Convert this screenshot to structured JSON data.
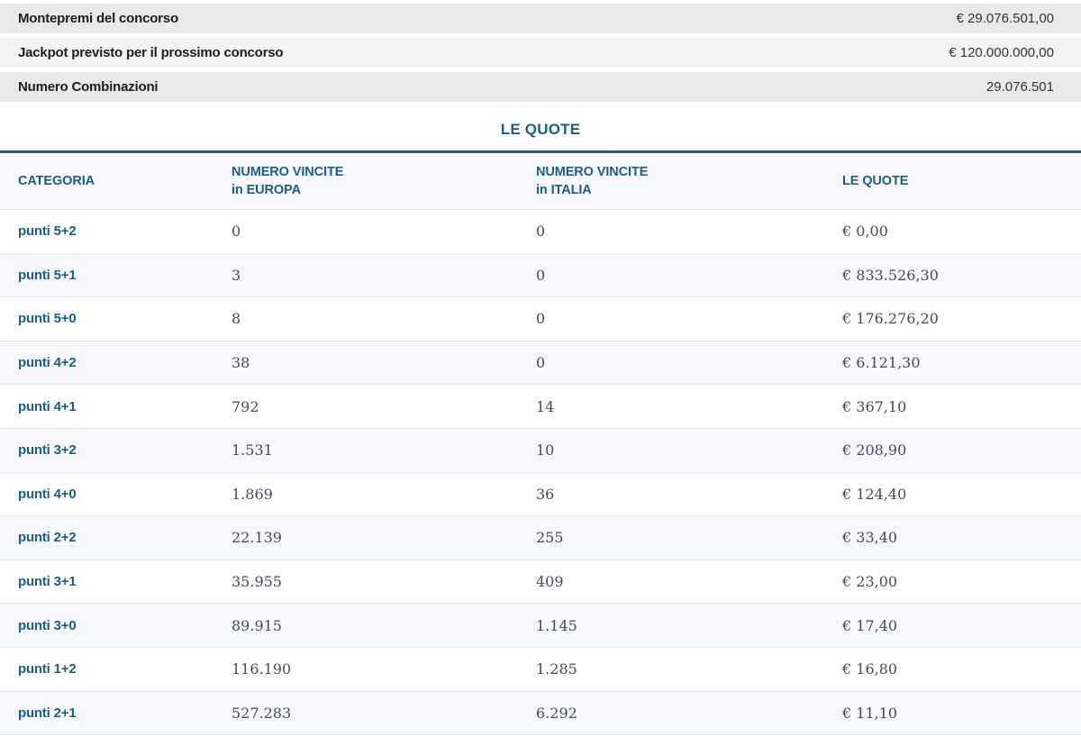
{
  "summary": {
    "rows": [
      {
        "label": "Montepremi del concorso",
        "value": "€ 29.076.501,00"
      },
      {
        "label": "Jackpot previsto per il prossimo concorso",
        "value": "€ 120.000.000,00"
      },
      {
        "label": "Numero Combinazioni",
        "value": "29.076.501"
      }
    ]
  },
  "section_title": "LE QUOTE",
  "table": {
    "headers": [
      {
        "line1": "CATEGORIA"
      },
      {
        "line1": "NUMERO VINCITE",
        "line2": "in EUROPA"
      },
      {
        "line1": "NUMERO VINCITE",
        "line2": "in ITALIA"
      },
      {
        "line1": "LE QUOTE"
      }
    ],
    "rows": [
      {
        "category": "punti 5+2",
        "europe": "0",
        "italy": "0",
        "quote": "€ 0,00"
      },
      {
        "category": "punti 5+1",
        "europe": "3",
        "italy": "0",
        "quote": "€ 833.526,30"
      },
      {
        "category": "punti 5+0",
        "europe": "8",
        "italy": "0",
        "quote": "€ 176.276,20"
      },
      {
        "category": "punti 4+2",
        "europe": "38",
        "italy": "0",
        "quote": "€ 6.121,30"
      },
      {
        "category": "punti 4+1",
        "europe": "792",
        "italy": "14",
        "quote": "€ 367,10"
      },
      {
        "category": "punti 3+2",
        "europe": "1.531",
        "italy": "10",
        "quote": "€ 208,90"
      },
      {
        "category": "punti 4+0",
        "europe": "1.869",
        "italy": "36",
        "quote": "€ 124,40"
      },
      {
        "category": "punti 2+2",
        "europe": "22.139",
        "italy": "255",
        "quote": "€ 33,40"
      },
      {
        "category": "punti 3+1",
        "europe": "35.955",
        "italy": "409",
        "quote": "€ 23,00"
      },
      {
        "category": "punti 3+0",
        "europe": "89.915",
        "italy": "1.145",
        "quote": "€ 17,40"
      },
      {
        "category": "punti 1+2",
        "europe": "116.190",
        "italy": "1.285",
        "quote": "€ 16,80"
      },
      {
        "category": "punti 2+1",
        "europe": "527.283",
        "italy": "6.292",
        "quote": "€ 11,10"
      }
    ]
  },
  "colors": {
    "heading_blue": "#1a5c88",
    "rule_navy": "#2e5d7c",
    "row_alt_bg": "#f6f8fc",
    "row_divider": "#dbe7f1",
    "summary_dark_bg": "#e9e9e9",
    "summary_light_bg": "#f4f4f4",
    "number_text": "#474760"
  }
}
